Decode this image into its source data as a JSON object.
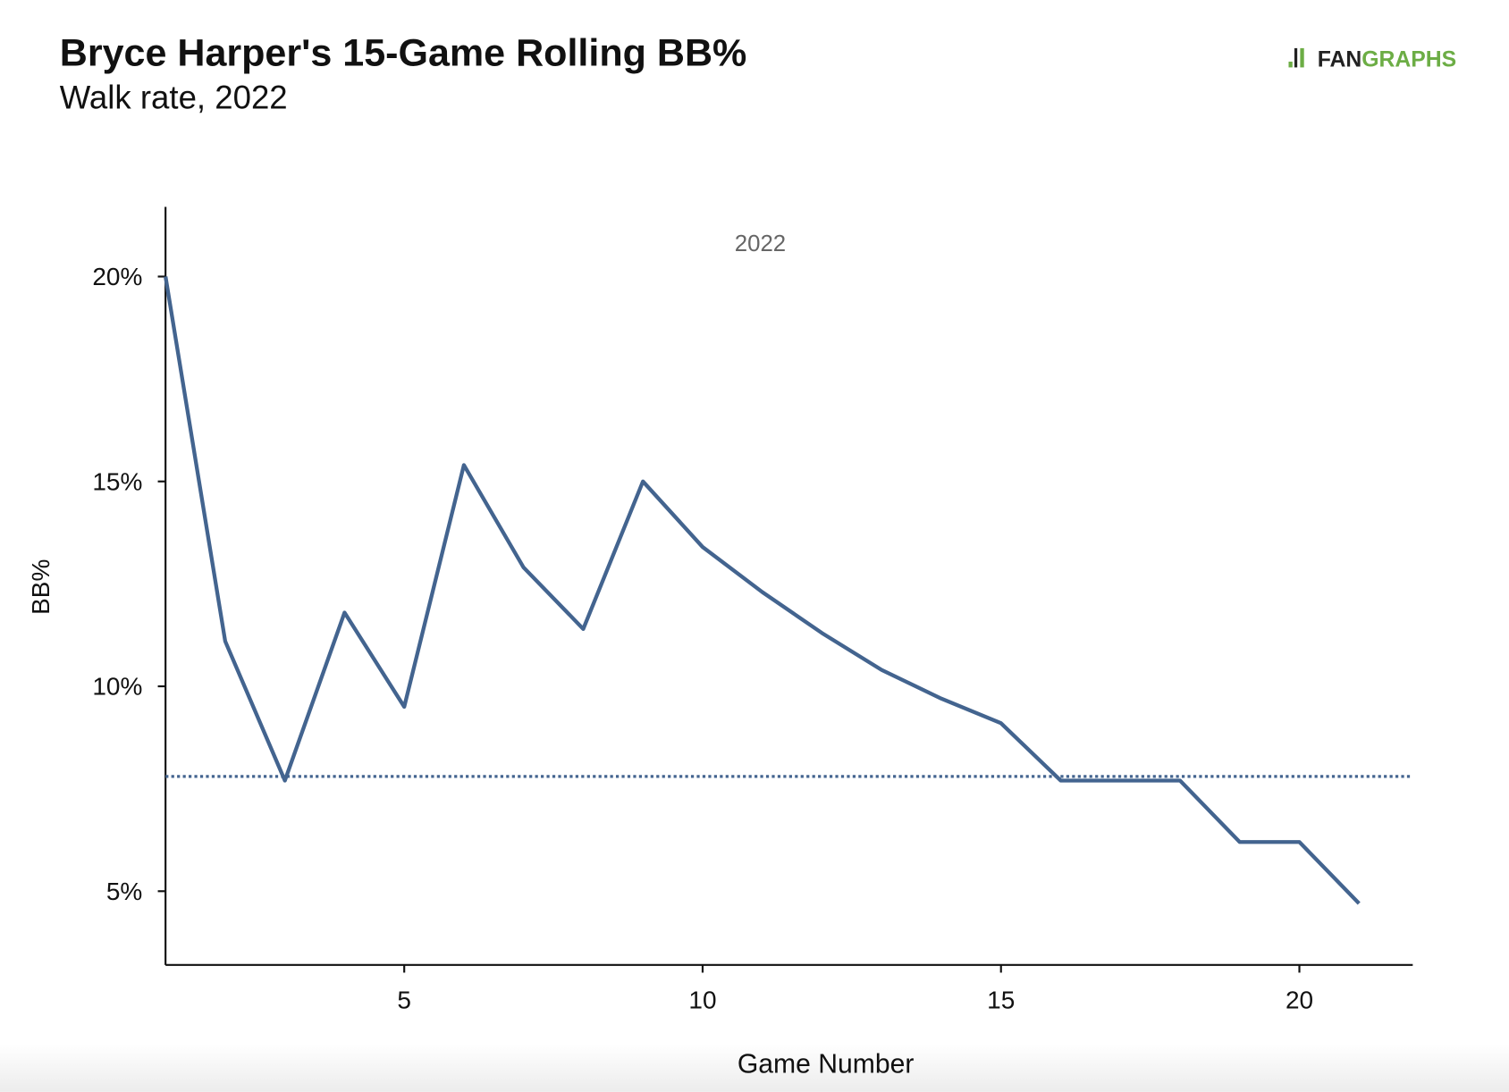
{
  "chart_data": {
    "type": "line",
    "title": "Bryce Harper's 15-Game Rolling BB%",
    "subtitle": "Walk rate, 2022",
    "logo": [
      "FAN",
      "GRAPHS"
    ],
    "annotation": "2022",
    "x_label": "Game Number",
    "y_label": "BB%",
    "x": [
      1,
      2,
      3,
      4,
      5,
      6,
      7,
      8,
      9,
      10,
      11,
      12,
      13,
      14,
      15,
      16,
      17,
      18,
      19,
      20,
      21
    ],
    "series": [
      {
        "name": "2022",
        "color": "#43648f",
        "values": [
          20,
          11.1,
          7.7,
          11.8,
          9.5,
          15.4,
          12.9,
          11.4,
          15.0,
          13.4,
          12.3,
          11.3,
          10.4,
          9.7,
          9.1,
          7.7,
          7.7,
          7.7,
          6.2,
          6.2,
          4.7
        ]
      }
    ],
    "reference_line": {
      "value": 7.8,
      "color": "#43648f",
      "style": "dotted"
    },
    "xlim": [
      1,
      21.9
    ],
    "ylim": [
      3.2,
      21.7
    ],
    "xticks": [
      5,
      10,
      15,
      20
    ],
    "yticks": [
      {
        "value": 5,
        "label": "5%"
      },
      {
        "value": 10,
        "label": "10%"
      },
      {
        "value": 15,
        "label": "15%"
      },
      {
        "value": 20,
        "label": "20%"
      }
    ],
    "grid": false
  }
}
